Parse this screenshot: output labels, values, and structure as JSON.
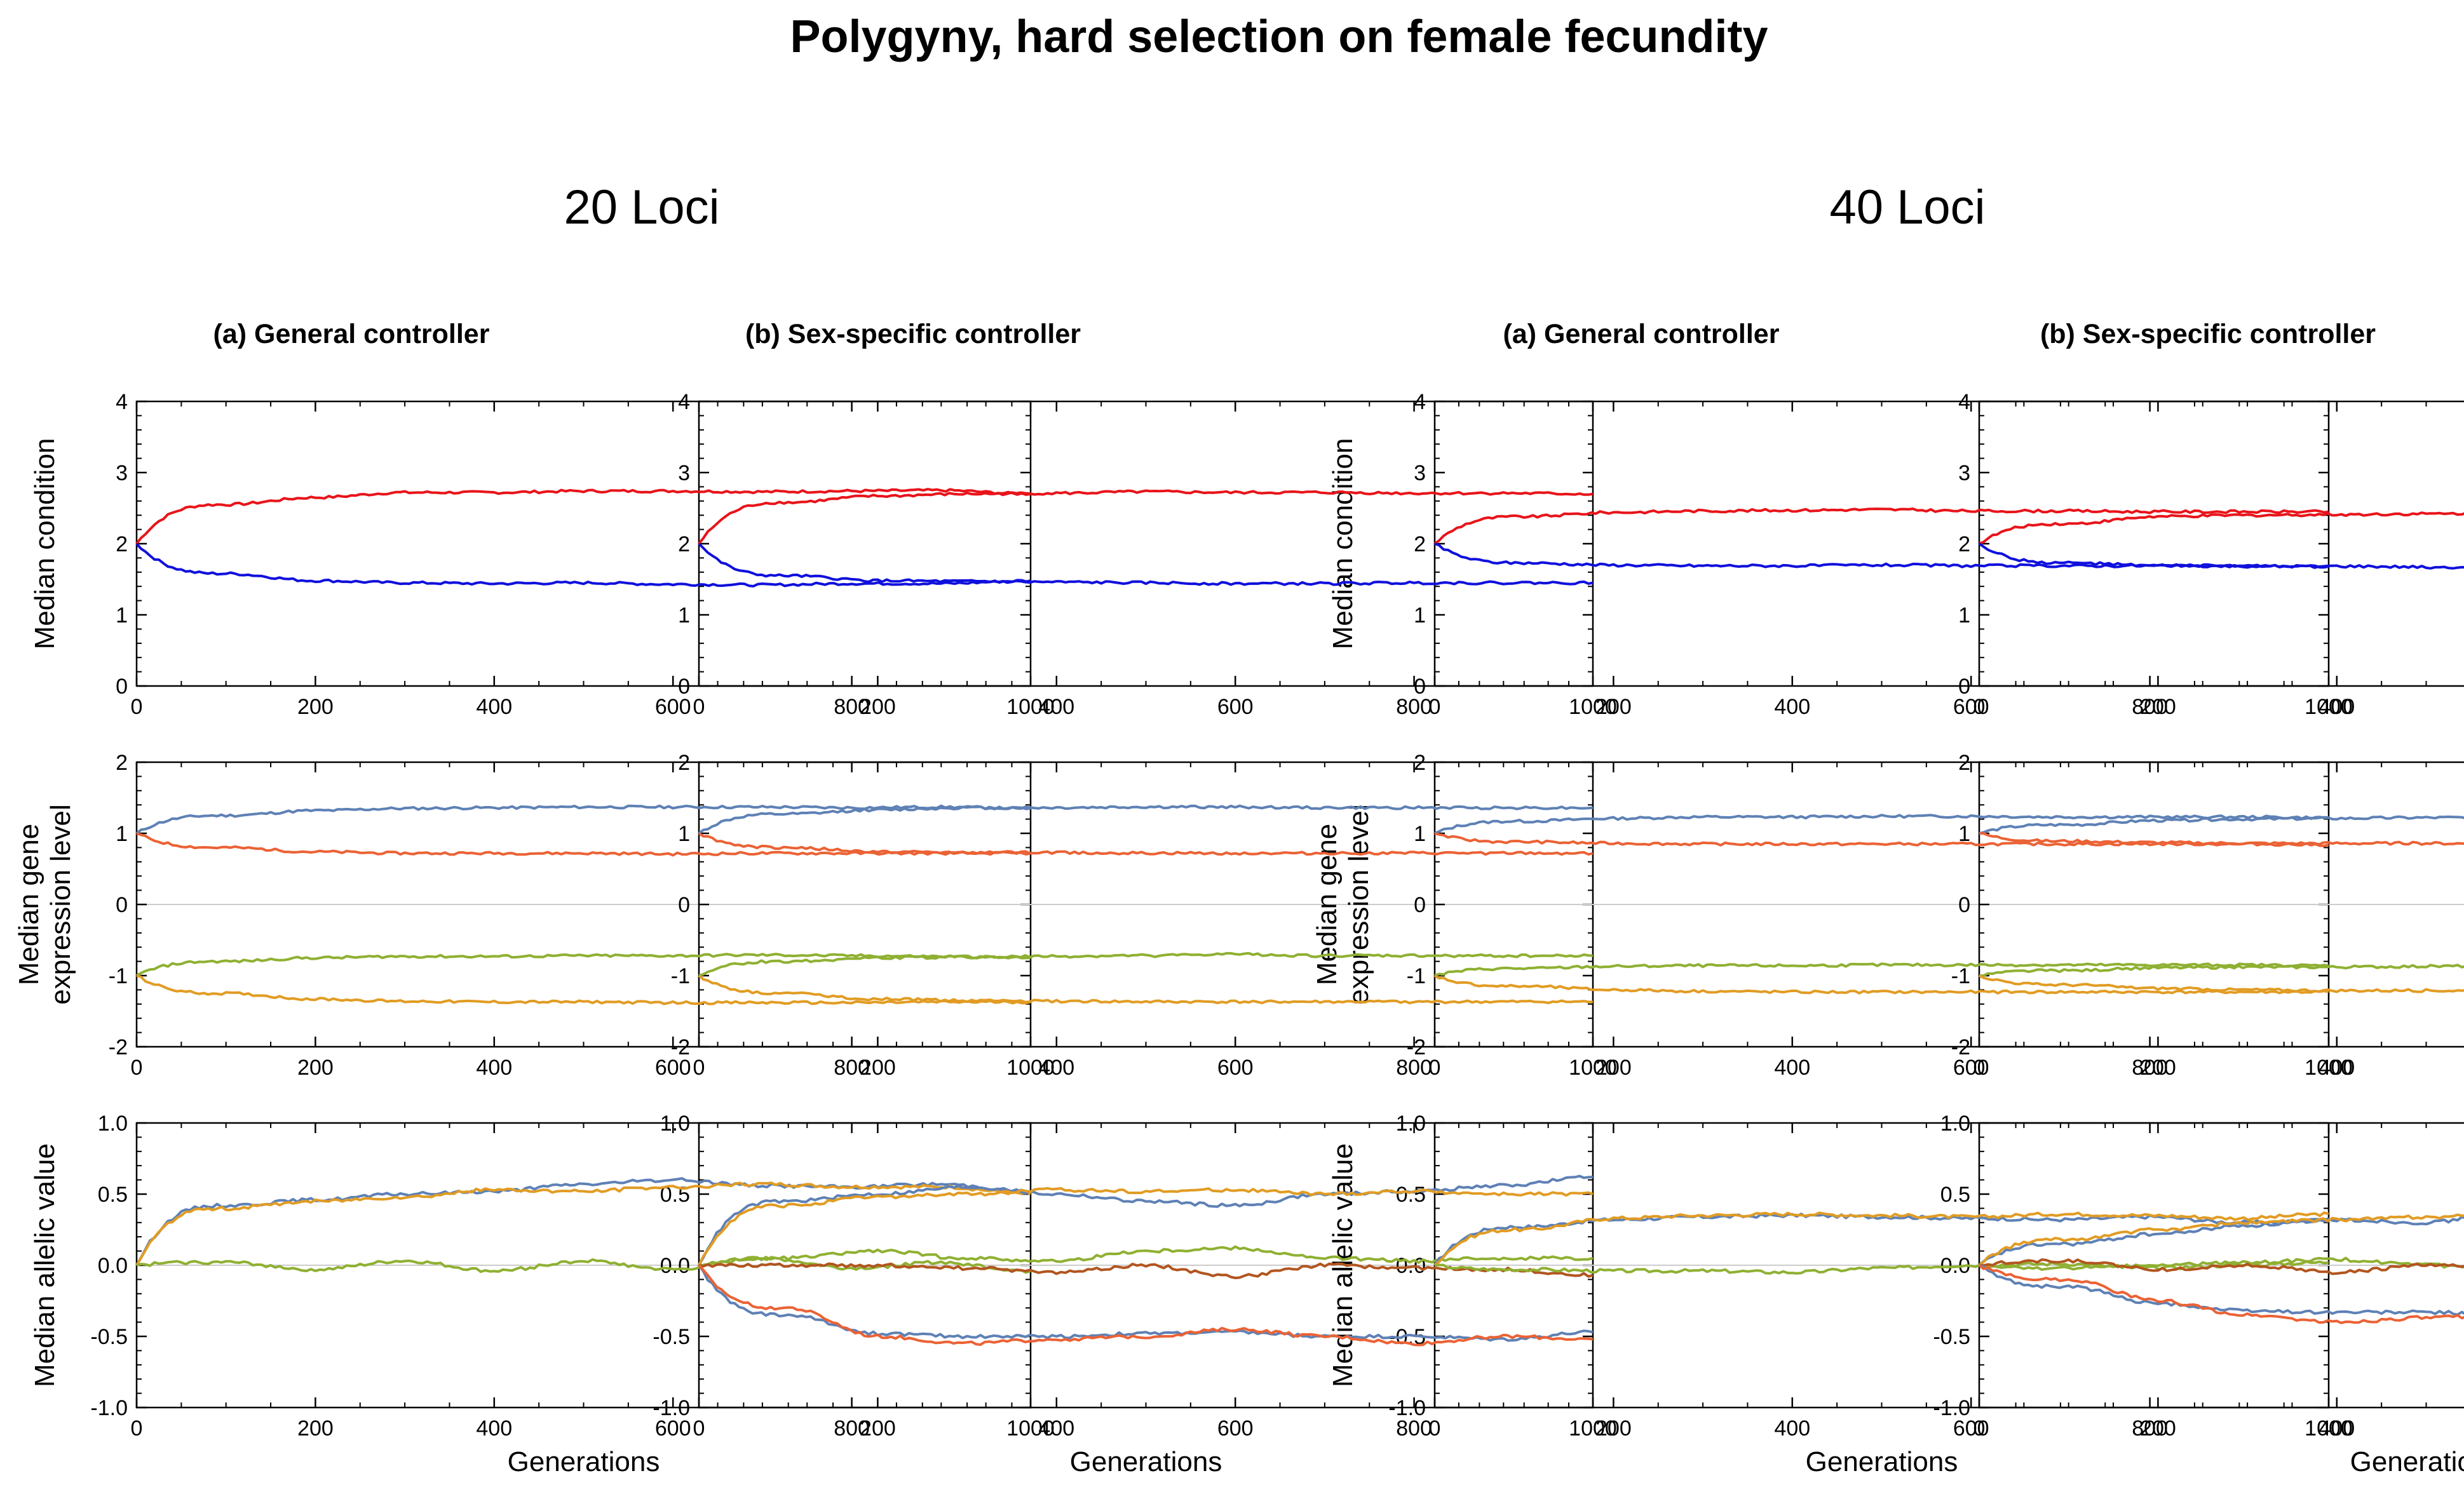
{
  "title": "Polygyny, hard selection on female fecundity",
  "groups": [
    "20 Loci",
    "40 Loci"
  ],
  "column_titles": [
    "(a) General controller",
    "(b) Sex-specific controller"
  ],
  "row_ylabels": [
    [
      "Median condition"
    ],
    [
      "Median gene",
      "expression level"
    ],
    [
      "Median allelic value"
    ]
  ],
  "xlabel": "Generations",
  "colors": {
    "red": "#e8141a",
    "blue": "#1010dd",
    "steel": "#5e81b5",
    "orange": "#e19c24",
    "green": "#8fb032",
    "vermilion": "#eb6235",
    "brown": "#b2551f",
    "grid": "#cccccc"
  },
  "axes": {
    "x": {
      "range": [
        0,
        1000
      ],
      "ticks": [
        0,
        200,
        400,
        600,
        800,
        1000
      ]
    },
    "condition": {
      "range": [
        0,
        4
      ],
      "ticks": [
        0,
        1,
        2,
        3,
        4
      ]
    },
    "expression": {
      "range": [
        -2,
        2
      ],
      "ticks": [
        -2,
        -1,
        0,
        1,
        2
      ]
    },
    "allelic": {
      "range": [
        -1.0,
        1.0
      ],
      "ticks": [
        "-1.0",
        "-0.5",
        "0.0",
        "0.5",
        "1.0"
      ]
    }
  },
  "chart_data": [
    {
      "type": "line",
      "group": "20 Loci",
      "column": "(a) General controller",
      "row": "Median condition",
      "x": [
        0,
        100,
        200,
        300,
        400,
        500,
        600,
        700,
        800,
        900,
        1000
      ],
      "series": [
        {
          "color": "red",
          "values": [
            2.0,
            2.55,
            2.65,
            2.72,
            2.72,
            2.74,
            2.74,
            2.73,
            2.74,
            2.75,
            2.7
          ]
        },
        {
          "color": "blue",
          "values": [
            2.0,
            1.58,
            1.48,
            1.45,
            1.44,
            1.45,
            1.43,
            1.42,
            1.44,
            1.44,
            1.48
          ]
        }
      ]
    },
    {
      "type": "line",
      "group": "20 Loci",
      "column": "(b) Sex-specific controller",
      "row": "Median condition",
      "x": [
        0,
        100,
        200,
        300,
        400,
        500,
        600,
        700,
        800,
        900,
        1000
      ],
      "series": [
        {
          "color": "red",
          "values": [
            2.0,
            2.58,
            2.67,
            2.7,
            2.71,
            2.73,
            2.72,
            2.72,
            2.71,
            2.71,
            2.7
          ]
        },
        {
          "color": "blue",
          "values": [
            2.0,
            1.55,
            1.48,
            1.47,
            1.46,
            1.45,
            1.44,
            1.44,
            1.45,
            1.45,
            1.45
          ]
        }
      ]
    },
    {
      "type": "line",
      "group": "40 Loci",
      "column": "(a) General controller",
      "row": "Median condition",
      "x": [
        0,
        100,
        200,
        300,
        400,
        500,
        600,
        700,
        800,
        900,
        1000
      ],
      "series": [
        {
          "color": "red",
          "values": [
            2.0,
            2.38,
            2.44,
            2.46,
            2.47,
            2.48,
            2.46,
            2.46,
            2.45,
            2.45,
            2.45
          ]
        },
        {
          "color": "blue",
          "values": [
            2.0,
            1.73,
            1.7,
            1.69,
            1.69,
            1.7,
            1.69,
            1.69,
            1.69,
            1.69,
            1.68
          ]
        }
      ]
    },
    {
      "type": "line",
      "group": "40 Loci",
      "column": "(b) Sex-specific controller",
      "row": "Median condition",
      "x": [
        0,
        100,
        200,
        300,
        400,
        500,
        600,
        700,
        800,
        900,
        1000
      ],
      "series": [
        {
          "color": "red",
          "values": [
            2.0,
            2.28,
            2.38,
            2.4,
            2.41,
            2.42,
            2.43,
            2.42,
            2.41,
            2.42,
            2.4
          ]
        },
        {
          "color": "blue",
          "values": [
            2.0,
            1.73,
            1.69,
            1.68,
            1.68,
            1.67,
            1.67,
            1.66,
            1.67,
            1.67,
            1.66
          ]
        }
      ]
    },
    {
      "type": "line",
      "group": "20 Loci",
      "column": "(a) General controller",
      "row": "Median gene expression level",
      "x": [
        0,
        100,
        200,
        300,
        400,
        500,
        600,
        700,
        800,
        900,
        1000
      ],
      "series": [
        {
          "color": "steel",
          "values": [
            1.0,
            1.25,
            1.32,
            1.35,
            1.36,
            1.37,
            1.37,
            1.37,
            1.36,
            1.37,
            1.35
          ]
        },
        {
          "color": "vermilion",
          "values": [
            1.0,
            0.8,
            0.74,
            0.72,
            0.72,
            0.72,
            0.71,
            0.72,
            0.72,
            0.72,
            0.72
          ]
        },
        {
          "color": "green",
          "values": [
            -1.0,
            -0.8,
            -0.75,
            -0.73,
            -0.73,
            -0.72,
            -0.72,
            -0.71,
            -0.72,
            -0.73,
            -0.75
          ]
        },
        {
          "color": "orange",
          "values": [
            -1.0,
            -1.25,
            -1.33,
            -1.36,
            -1.37,
            -1.37,
            -1.38,
            -1.38,
            -1.38,
            -1.37,
            -1.37
          ]
        }
      ]
    },
    {
      "type": "line",
      "group": "20 Loci",
      "column": "(b) Sex-specific controller",
      "row": "Median gene expression level",
      "x": [
        0,
        100,
        200,
        300,
        400,
        500,
        600,
        700,
        800,
        900,
        1000
      ],
      "series": [
        {
          "color": "steel",
          "values": [
            1.0,
            1.27,
            1.33,
            1.36,
            1.36,
            1.37,
            1.37,
            1.36,
            1.36,
            1.36,
            1.36
          ]
        },
        {
          "color": "vermilion",
          "values": [
            1.0,
            0.8,
            0.74,
            0.73,
            0.73,
            0.72,
            0.72,
            0.72,
            0.72,
            0.72,
            0.72
          ]
        },
        {
          "color": "green",
          "values": [
            -1.0,
            -0.8,
            -0.75,
            -0.74,
            -0.73,
            -0.72,
            -0.7,
            -0.72,
            -0.72,
            -0.72,
            -0.72
          ]
        },
        {
          "color": "orange",
          "values": [
            -1.0,
            -1.25,
            -1.33,
            -1.35,
            -1.36,
            -1.37,
            -1.37,
            -1.37,
            -1.37,
            -1.37,
            -1.37
          ]
        }
      ]
    },
    {
      "type": "line",
      "group": "40 Loci",
      "column": "(a) General controller",
      "row": "Median gene expression level",
      "x": [
        0,
        100,
        200,
        300,
        400,
        500,
        600,
        700,
        800,
        900,
        1000
      ],
      "series": [
        {
          "color": "steel",
          "values": [
            1.0,
            1.17,
            1.21,
            1.23,
            1.23,
            1.24,
            1.24,
            1.23,
            1.23,
            1.23,
            1.22
          ]
        },
        {
          "color": "vermilion",
          "values": [
            1.0,
            0.88,
            0.86,
            0.85,
            0.85,
            0.85,
            0.85,
            0.85,
            0.85,
            0.85,
            0.84
          ]
        },
        {
          "color": "green",
          "values": [
            -1.0,
            -0.9,
            -0.87,
            -0.86,
            -0.86,
            -0.85,
            -0.85,
            -0.85,
            -0.85,
            -0.85,
            -0.86
          ]
        },
        {
          "color": "orange",
          "values": [
            -1.0,
            -1.15,
            -1.2,
            -1.22,
            -1.23,
            -1.23,
            -1.23,
            -1.23,
            -1.23,
            -1.23,
            -1.23
          ]
        }
      ]
    },
    {
      "type": "line",
      "group": "40 Loci",
      "column": "(b) Sex-specific controller",
      "row": "Median gene expression level",
      "x": [
        0,
        100,
        200,
        300,
        400,
        500,
        600,
        700,
        800,
        900,
        1000
      ],
      "series": [
        {
          "color": "steel",
          "values": [
            1.0,
            1.12,
            1.18,
            1.2,
            1.21,
            1.22,
            1.23,
            1.24,
            1.22,
            1.22,
            1.21
          ]
        },
        {
          "color": "vermilion",
          "values": [
            1.0,
            0.89,
            0.87,
            0.86,
            0.86,
            0.86,
            0.85,
            0.85,
            0.85,
            0.85,
            0.84
          ]
        },
        {
          "color": "green",
          "values": [
            -1.0,
            -0.93,
            -0.89,
            -0.88,
            -0.88,
            -0.87,
            -0.86,
            -0.85,
            -0.86,
            -0.86,
            -0.86
          ]
        },
        {
          "color": "orange",
          "values": [
            -1.0,
            -1.13,
            -1.18,
            -1.2,
            -1.21,
            -1.21,
            -1.22,
            -1.22,
            -1.22,
            -1.23,
            -1.24
          ]
        }
      ]
    },
    {
      "type": "line",
      "group": "20 Loci",
      "column": "(a) General controller",
      "row": "Median allelic value",
      "x": [
        0,
        100,
        200,
        300,
        400,
        500,
        600,
        700,
        800,
        900,
        1000
      ],
      "series": [
        {
          "color": "steel",
          "values": [
            0.0,
            0.42,
            0.46,
            0.5,
            0.52,
            0.57,
            0.6,
            0.56,
            0.55,
            0.57,
            0.52
          ]
        },
        {
          "color": "orange",
          "values": [
            0.0,
            0.4,
            0.45,
            0.48,
            0.53,
            0.52,
            0.55,
            0.57,
            0.55,
            0.55,
            0.5
          ]
        },
        {
          "color": "green",
          "values": [
            0.0,
            0.02,
            -0.03,
            0.03,
            -0.04,
            0.03,
            -0.03,
            0.05,
            -0.02,
            0.02,
            -0.04
          ]
        }
      ]
    },
    {
      "type": "line",
      "group": "20 Loci",
      "column": "(b) Sex-specific controller",
      "row": "Median allelic value",
      "x": [
        0,
        100,
        200,
        300,
        400,
        500,
        600,
        700,
        800,
        900,
        1000
      ],
      "series": [
        {
          "color": "steel",
          "values": [
            0.0,
            0.45,
            0.5,
            0.55,
            0.5,
            0.45,
            0.42,
            0.5,
            0.52,
            0.56,
            0.62
          ]
        },
        {
          "color": "orange",
          "values": [
            0.0,
            0.42,
            0.48,
            0.5,
            0.53,
            0.52,
            0.53,
            0.5,
            0.52,
            0.5,
            0.5
          ]
        },
        {
          "color": "green",
          "values": [
            0.0,
            0.05,
            0.1,
            0.05,
            0.03,
            0.1,
            0.12,
            0.05,
            0.03,
            0.05,
            0.05
          ]
        },
        {
          "color": "brown",
          "values": [
            0.0,
            0.0,
            0.0,
            -0.02,
            -0.05,
            0.0,
            -0.08,
            0.0,
            -0.02,
            -0.03,
            -0.07
          ]
        },
        {
          "color": "steel",
          "values": [
            0.0,
            -0.35,
            -0.48,
            -0.5,
            -0.5,
            -0.48,
            -0.47,
            -0.5,
            -0.5,
            -0.52,
            -0.47
          ]
        },
        {
          "color": "vermilion",
          "values": [
            0.0,
            -0.3,
            -0.5,
            -0.55,
            -0.52,
            -0.5,
            -0.45,
            -0.5,
            -0.55,
            -0.5,
            -0.52
          ]
        }
      ]
    },
    {
      "type": "line",
      "group": "40 Loci",
      "column": "(a) General controller",
      "row": "Median allelic value",
      "x": [
        0,
        100,
        200,
        300,
        400,
        500,
        600,
        700,
        800,
        900,
        1000
      ],
      "series": [
        {
          "color": "steel",
          "values": [
            0.0,
            0.27,
            0.32,
            0.34,
            0.35,
            0.34,
            0.33,
            0.32,
            0.34,
            0.3,
            0.31
          ]
        },
        {
          "color": "orange",
          "values": [
            0.0,
            0.25,
            0.33,
            0.35,
            0.36,
            0.35,
            0.34,
            0.36,
            0.35,
            0.33,
            0.36
          ]
        },
        {
          "color": "green",
          "values": [
            0.0,
            -0.03,
            -0.04,
            -0.04,
            -0.05,
            -0.02,
            0.0,
            0.01,
            -0.02,
            0.0,
            0.02
          ]
        }
      ]
    },
    {
      "type": "line",
      "group": "40 Loci",
      "column": "(b) Sex-specific controller",
      "row": "Median allelic value",
      "x": [
        0,
        100,
        200,
        300,
        400,
        500,
        600,
        700,
        800,
        900,
        1000
      ],
      "series": [
        {
          "color": "steel",
          "values": [
            0.0,
            0.15,
            0.22,
            0.28,
            0.32,
            0.3,
            0.38,
            0.42,
            0.33,
            0.3,
            0.25
          ]
        },
        {
          "color": "orange",
          "values": [
            0.0,
            0.18,
            0.25,
            0.3,
            0.32,
            0.34,
            0.36,
            0.38,
            0.36,
            0.33,
            0.32
          ]
        },
        {
          "color": "green",
          "values": [
            0.0,
            -0.02,
            0.0,
            0.02,
            0.04,
            0.0,
            -0.04,
            0.02,
            0.0,
            0.02,
            0.02
          ]
        },
        {
          "color": "brown",
          "values": [
            0.0,
            0.03,
            -0.03,
            0.0,
            -0.05,
            0.0,
            -0.02,
            0.02,
            0.0,
            0.0,
            0.04
          ]
        },
        {
          "color": "steel",
          "values": [
            0.0,
            -0.15,
            -0.27,
            -0.32,
            -0.33,
            -0.33,
            -0.35,
            -0.32,
            -0.33,
            -0.33,
            -0.35
          ]
        },
        {
          "color": "vermilion",
          "values": [
            0.0,
            -0.1,
            -0.25,
            -0.35,
            -0.4,
            -0.37,
            -0.34,
            -0.33,
            -0.32,
            -0.32,
            -0.35
          ]
        }
      ]
    }
  ]
}
